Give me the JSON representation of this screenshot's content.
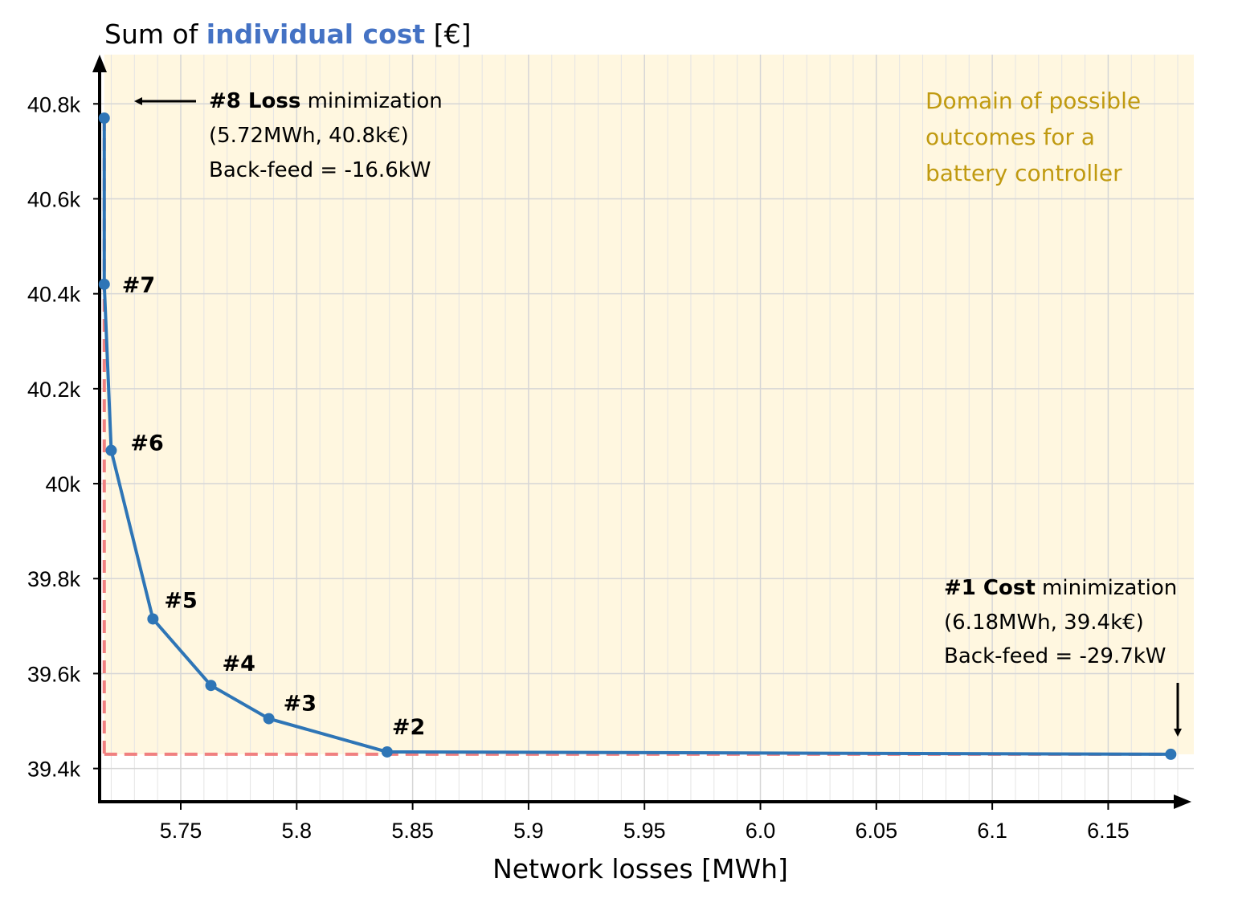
{
  "chart_data": {
    "type": "line",
    "title": "",
    "ylabel_parts": {
      "pre": "Sum of ",
      "highlight": "individual cost",
      "post": " [€]"
    },
    "xlabel": "Network losses [MWh]",
    "xlim": [
      5.715,
      6.18
    ],
    "ylim": [
      39.33,
      40.88
    ],
    "x_ticks": [
      5.75,
      5.8,
      5.85,
      5.9,
      5.95,
      6.0,
      6.05,
      6.1,
      6.15
    ],
    "x_tick_labels": [
      "5.75",
      "5.8",
      "5.85",
      "5.9",
      "5.95",
      "6.0",
      "6.05",
      "6.1",
      "6.15"
    ],
    "y_ticks": [
      39.4,
      39.6,
      39.8,
      40.0,
      40.2,
      40.4,
      40.6,
      40.8
    ],
    "y_tick_labels": [
      "39.4k",
      "39.6k",
      "39.8k",
      "40k",
      "40.2k",
      "40.4k",
      "40.6k",
      "40.8k"
    ],
    "grid": true,
    "series": [
      {
        "color": "#2e75b6",
        "x": [
          5.717,
          5.717,
          5.72,
          5.738,
          5.763,
          5.788,
          5.839,
          6.177
        ],
        "y": [
          40.77,
          40.42,
          40.07,
          39.715,
          39.575,
          39.505,
          39.435,
          39.43
        ],
        "labels": [
          "",
          "#7",
          "#6",
          "#5",
          "#4",
          "#3",
          "#2",
          ""
        ]
      }
    ],
    "reference_lines": {
      "x": 5.717,
      "y": 39.43,
      "color": "#f08080"
    },
    "domain_shading": {
      "color": "#fff7e0",
      "text": [
        "Domain of possible",
        "outcomes for a",
        "battery controller"
      ],
      "text_color": "#c09a10"
    },
    "annotations": [
      {
        "bold": "#8 Loss",
        "rest": " minimization",
        "line2": "(5.72MWh, 40.8k€)",
        "line3": "Back-feed = -16.6kW"
      },
      {
        "bold": "#1 Cost",
        "rest": " minimization",
        "line2": "(6.18MWh, 39.4k€)",
        "line3": "Back-feed = -29.7kW"
      }
    ],
    "highlight_color": "#4472c4"
  }
}
